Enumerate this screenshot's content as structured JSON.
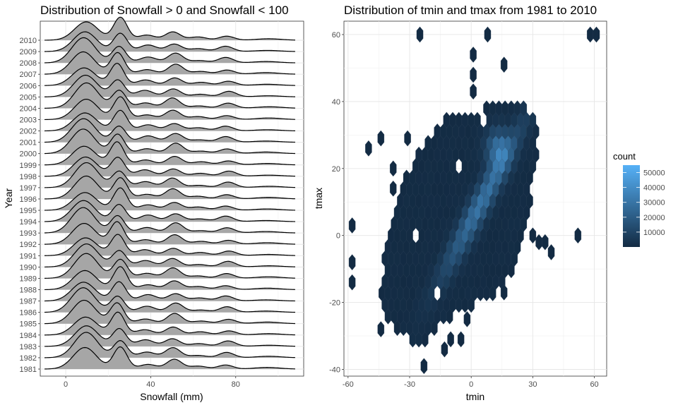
{
  "chart_data": [
    {
      "type": "ridgeline",
      "title": "Distribution of Snowfall > 0 and Snowfall < 100",
      "xlabel": "Snowfall (mm)",
      "ylabel": "Year",
      "xlim": [
        -12,
        112
      ],
      "x_ticks": [
        "0",
        "40",
        "80"
      ],
      "x_tick_values": [
        0,
        40,
        80
      ],
      "categories": [
        "1981",
        "1982",
        "1983",
        "1984",
        "1985",
        "1986",
        "1987",
        "1988",
        "1989",
        "1990",
        "1991",
        "1992",
        "1993",
        "1994",
        "1995",
        "1996",
        "1997",
        "1998",
        "1999",
        "2000",
        "2001",
        "2002",
        "2003",
        "2004",
        "2005",
        "2006",
        "2007",
        "2008",
        "2009",
        "2010"
      ],
      "fill_color": "#a6a6a6",
      "line_color": "#000000",
      "grid": true,
      "density_components": [
        {
          "mean": 9,
          "sd": 5.5,
          "weight": 0.42
        },
        {
          "mean": 25,
          "sd": 3.2,
          "weight": 0.22
        },
        {
          "mean": 38,
          "sd": 4,
          "weight": 0.08
        },
        {
          "mean": 51,
          "sd": 3.5,
          "weight": 0.11
        },
        {
          "mean": 63,
          "sd": 4,
          "weight": 0.04
        },
        {
          "mean": 76,
          "sd": 3.5,
          "weight": 0.06
        },
        {
          "mean": 95,
          "sd": 6,
          "weight": 0.03
        }
      ],
      "x_range": [
        -10,
        108
      ]
    },
    {
      "type": "hexbin",
      "title": "Distribution of tmin and tmax from 1981 to 2010",
      "xlabel": "tmin",
      "ylabel": "tmax",
      "xlim": [
        -62,
        66
      ],
      "ylim": [
        -42,
        64
      ],
      "x_ticks": [
        "-60",
        "-30",
        "0",
        "30",
        "60"
      ],
      "x_tick_values": [
        -60,
        -30,
        0,
        30,
        60
      ],
      "y_ticks": [
        "-40",
        "-20",
        "0",
        "20",
        "40",
        "60"
      ],
      "y_tick_values": [
        -40,
        -20,
        0,
        20,
        40,
        60
      ],
      "grid": true,
      "legend": {
        "title": "count",
        "placement": "right",
        "labels": [
          "50000",
          "40000",
          "30000",
          "20000",
          "10000"
        ],
        "label_values": [
          50000,
          40000,
          30000,
          20000,
          10000
        ],
        "max": 55000,
        "color_low": "#132b43",
        "color_high": "#56b1f7"
      },
      "dense_region": {
        "center_a": 5,
        "center_b": 10,
        "slope": 1.1
      },
      "outliers": [
        {
          "tmin": -25,
          "tmax": 60,
          "count": 2
        },
        {
          "tmin": 8,
          "tmax": 60,
          "count": 2
        },
        {
          "tmin": 58,
          "tmax": 60,
          "count": 1
        },
        {
          "tmin": 61,
          "tmax": 60,
          "count": 1
        },
        {
          "tmin": 1,
          "tmax": 54,
          "count": 1
        },
        {
          "tmin": 16,
          "tmax": 51,
          "count": 1
        },
        {
          "tmin": 1,
          "tmax": 48,
          "count": 1
        },
        {
          "tmin": 1,
          "tmax": 43,
          "count": 1
        },
        {
          "tmin": -50,
          "tmax": 26,
          "count": 1
        },
        {
          "tmin": -44,
          "tmax": 29,
          "count": 1
        },
        {
          "tmin": -31,
          "tmax": 29,
          "count": 1
        },
        {
          "tmin": -38,
          "tmax": 20,
          "count": 1
        },
        {
          "tmin": -38,
          "tmax": 14,
          "count": 1
        },
        {
          "tmin": -58,
          "tmax": 3,
          "count": 1
        },
        {
          "tmin": -58,
          "tmax": -8,
          "count": 1
        },
        {
          "tmin": -58,
          "tmax": -14,
          "count": 1
        },
        {
          "tmin": -44,
          "tmax": -28,
          "count": 1
        },
        {
          "tmin": -23,
          "tmax": -39,
          "count": 1
        },
        {
          "tmin": -13,
          "tmax": -34,
          "count": 1
        },
        {
          "tmin": -10,
          "tmax": -31,
          "count": 1
        },
        {
          "tmin": -5,
          "tmax": -31,
          "count": 1
        },
        {
          "tmin": -2,
          "tmax": -25,
          "count": 1
        },
        {
          "tmin": 16,
          "tmax": -17,
          "count": 1
        },
        {
          "tmin": 52,
          "tmax": 0,
          "count": 1
        },
        {
          "tmin": 36,
          "tmax": -2,
          "count": 1
        },
        {
          "tmin": 39,
          "tmax": -5,
          "count": 1
        },
        {
          "tmin": 33,
          "tmax": -2,
          "count": 1
        },
        {
          "tmin": 30,
          "tmax": 0,
          "count": 1
        }
      ]
    }
  ]
}
